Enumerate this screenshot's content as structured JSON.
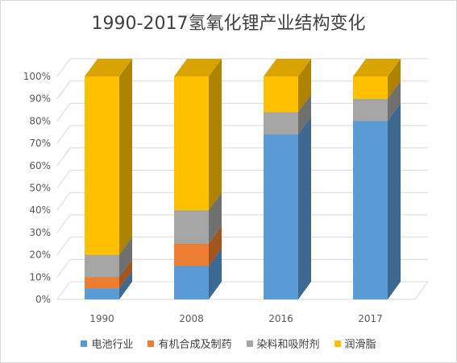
{
  "chart_data": {
    "type": "bar",
    "stacked": true,
    "percent": true,
    "three_d": true,
    "title": "1990-2017氢氧化锂产业结构变化",
    "categories": [
      "1990",
      "2008",
      "2016",
      "2017"
    ],
    "ylim": [
      0,
      100
    ],
    "yticks": [
      "0%",
      "10%",
      "20%",
      "30%",
      "40%",
      "50%",
      "60%",
      "70%",
      "80%",
      "90%",
      "100%"
    ],
    "grid": true,
    "legend_position": "bottom",
    "series": [
      {
        "name": "电池行业",
        "color": "#5b9bd5",
        "values": [
          5,
          15,
          74,
          80
        ]
      },
      {
        "name": "有机合成及制药",
        "color": "#ed7d31",
        "values": [
          5,
          10,
          0,
          0
        ]
      },
      {
        "name": "染料和吸附剂",
        "color": "#a5a5a5",
        "values": [
          10,
          15,
          10,
          10
        ]
      },
      {
        "name": "润滑脂",
        "color": "#ffc000",
        "values": [
          80,
          60,
          16,
          10
        ]
      }
    ]
  }
}
